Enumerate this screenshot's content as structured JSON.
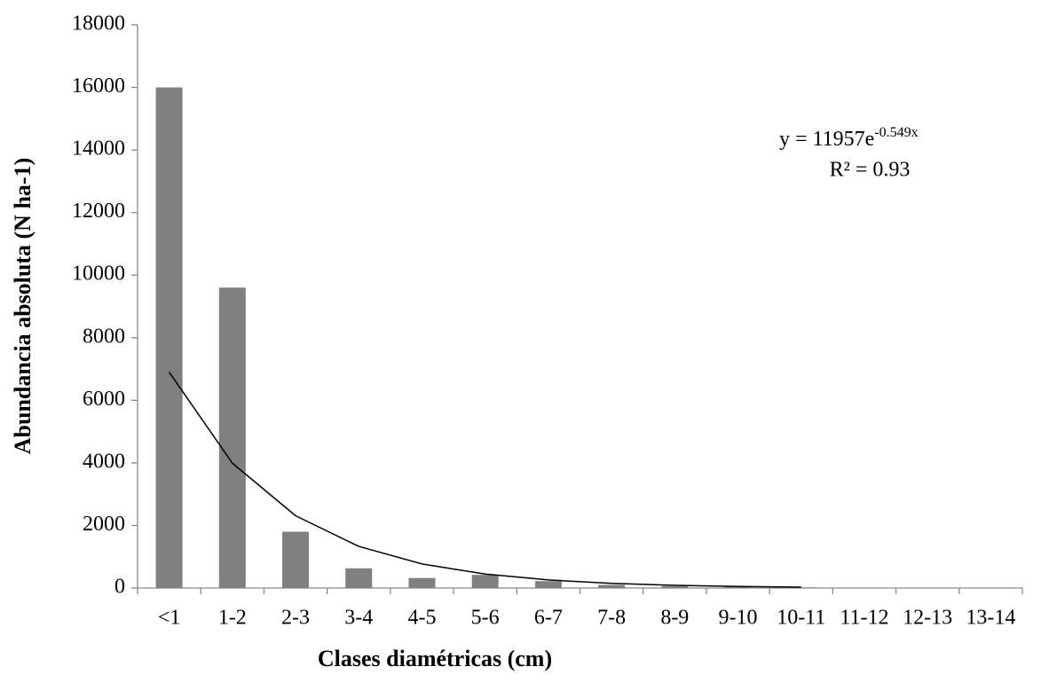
{
  "chart_data": {
    "type": "bar",
    "x_label": "Clases diamétricas (cm)",
    "y_label": "Abundancia absoluta (N ha-1)",
    "categories": [
      "<1",
      "1-2",
      "2-3",
      "3-4",
      "4-5",
      "5-6",
      "6-7",
      "7-8",
      "8-9",
      "9-10",
      "10-11",
      "11-12",
      "12-13",
      "13-14"
    ],
    "values": [
      16000,
      9600,
      1800,
      630,
      320,
      420,
      220,
      100,
      60,
      60,
      20,
      0,
      0,
      0
    ],
    "color": "#808080",
    "trendline": {
      "color": "#000000",
      "values": [
        6900,
        3990,
        2310,
        1330,
        770,
        445,
        257,
        149,
        86,
        50,
        29,
        null,
        null,
        null
      ]
    },
    "annotations": [
      "y = 11957e",
      "-0.549x",
      "R² = 0.93"
    ],
    "ylim": [
      0,
      18000
    ],
    "yticks": [
      0,
      2000,
      4000,
      6000,
      8000,
      10000,
      12000,
      14000,
      16000,
      18000
    ],
    "grid": false
  }
}
